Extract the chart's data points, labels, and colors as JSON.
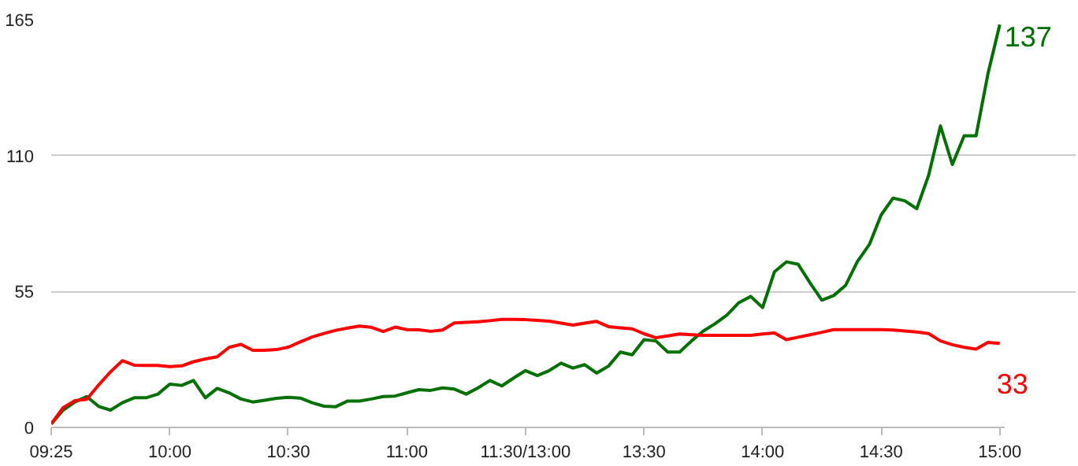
{
  "chart_data": {
    "type": "line",
    "ylim": [
      0,
      165
    ],
    "categories": [
      "09:25",
      null,
      null,
      null,
      null,
      null,
      null,
      null,
      null,
      null,
      "10:00",
      null,
      null,
      null,
      null,
      null,
      null,
      null,
      null,
      null,
      "10:30",
      null,
      null,
      null,
      null,
      null,
      null,
      null,
      null,
      null,
      "11:00",
      null,
      null,
      null,
      null,
      null,
      null,
      null,
      null,
      null,
      "11:30/13:00",
      null,
      null,
      null,
      null,
      null,
      null,
      null,
      null,
      null,
      "13:30",
      null,
      null,
      null,
      null,
      null,
      null,
      null,
      null,
      null,
      "14:00",
      null,
      null,
      null,
      null,
      null,
      null,
      null,
      null,
      null,
      "14:30",
      null,
      null,
      null,
      null,
      null,
      null,
      null,
      null,
      null,
      "15:00"
    ],
    "yticks": [
      0,
      55,
      110,
      165
    ],
    "grid": "y",
    "line_style": "solid",
    "annotations": [
      "137",
      "33"
    ],
    "series": [
      {
        "color": "#007000",
        "values": [
          1.4,
          7,
          10.3,
          12.5,
          8.5,
          7,
          10,
          12,
          12,
          13.5,
          17.5,
          17,
          19,
          12,
          15.8,
          14,
          11.5,
          10.3,
          11,
          11.8,
          12.2,
          11.9,
          10,
          8.6,
          8.4,
          10.7,
          10.7,
          11.5,
          12.5,
          12.7,
          14,
          15.3,
          15,
          16,
          15.5,
          13.5,
          16,
          19,
          16.8,
          20,
          23,
          21,
          23,
          26,
          24,
          25.4,
          22,
          24.8,
          30.5,
          29.4,
          35.5,
          35,
          30.5,
          30.5,
          35,
          39,
          42,
          45.5,
          50.5,
          53,
          48.5,
          63,
          67,
          66,
          58.5,
          51.5,
          53.4,
          57.5,
          67.2,
          74,
          86,
          92.8,
          91.7,
          88.5,
          102,
          122,
          106.4,
          118,
          118,
          143,
          163
        ]
      },
      {
        "color": "#ff0000",
        "values": [
          1.4,
          8,
          10.8,
          11.4,
          17.2,
          22.5,
          27,
          25.2,
          25.1,
          25.1,
          24.6,
          24.9,
          26.6,
          27.7,
          28.6,
          32.4,
          33.6,
          31.2,
          31.2,
          31.5,
          32.5,
          34.6,
          36.6,
          38,
          39.3,
          40.2,
          41,
          40.5,
          38.8,
          40.6,
          39.6,
          39.5,
          38.9,
          39.4,
          42.3,
          42.5,
          42.8,
          43.2,
          43.7,
          43.7,
          43.6,
          43.3,
          43,
          42.2,
          41.4,
          42.2,
          42.9,
          40.8,
          40.3,
          39.9,
          37.9,
          36.3,
          37,
          37.8,
          37.5,
          37.3,
          37.3,
          37.3,
          37.3,
          37.3,
          37.8,
          38.2,
          35.5,
          36.5,
          37.5,
          38.5,
          39.6,
          39.6,
          39.6,
          39.6,
          39.6,
          39.4,
          39,
          38.6,
          38,
          35,
          33.5,
          32.4,
          31.7,
          34.4,
          34
        ]
      }
    ]
  }
}
